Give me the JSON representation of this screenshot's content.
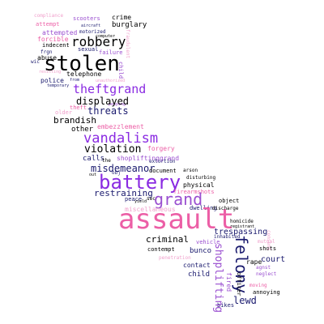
{
  "colors": {
    "black": "#000000",
    "navy": "#1a1a6e",
    "purple": "#8a2be2",
    "violet": "#9a4fd0",
    "pink": "#ec5fa6",
    "light_pink": "#f09fcb"
  },
  "words": {
    "assault": "assault",
    "stolen": "stolen",
    "battery": "battery",
    "vandalism": "vandalism",
    "felony": "felony",
    "grand": "grand",
    "robbery": "robbery",
    "theftgrand": "theftgrand",
    "shoplifting": "shoplifting",
    "displayed": "displayed",
    "threats": "threats",
    "violation": "violation",
    "misdemeanor": "misdemeanor",
    "criminal": "criminal",
    "brandish": "brandish",
    "trespassing": "trespassing",
    "restraining": "restraining",
    "lewd": "lewd",
    "telephone": "telephone",
    "court": "court",
    "burglary": "burglary",
    "attempted": "attempted",
    "forcible": "forcible",
    "indecent": "indecent",
    "sexual": "sexual",
    "abuse": "abuse",
    "police": "police",
    "other": "other",
    "theft": "theft",
    "older": "older",
    "calls": "calls",
    "crime": "crime",
    "compliance": "compliance",
    "scooters": "scooters",
    "attempt": "attempt",
    "motorized": "motorized",
    "computer": "computer",
    "aircraft": "aircraft",
    "failure": "failure",
    "frgn": "frgn",
    "wic": "wic",
    "child": "child",
    "embezzlement": "embezzlement",
    "forgery": "forgery",
    "shopliftinggrand": "shopliftinggrand",
    "extortion": "extortion",
    "document": "document",
    "arson": "arson",
    "physical": "physical",
    "firearmshots": "firearmshots",
    "miscellaneous": "miscellaneous",
    "dwelling": "dwelling",
    "object": "object",
    "yield": "yield",
    "peace": "peace",
    "sec": "sec",
    "disturbing": "disturbing",
    "homicide": "homicide",
    "registrant": "registrant",
    "vehicle": "vehicle",
    "inhabited": "inhabited",
    "bunco": "bunco",
    "contempt": "contempt",
    "penetration": "penetration",
    "contact": "contact",
    "child2": "child",
    "rape": "rape",
    "fired": "fired",
    "officer": "officer",
    "bikes": "bikes",
    "agnst": "agnst",
    "neglect": "neglect",
    "moving": "moving",
    "annoying": "annoying",
    "shots": "shots",
    "mutual": "mutual",
    "consent": "consent",
    "discharge": "discharge",
    "fraudulent": "fraudulent",
    "resisting": "resisting",
    "obj": "obj",
    "out": "out",
    "the": "the",
    "peeping": "peeping",
    "temporary": "temporary",
    "from": "from",
    "unauthorized": "unauthorized"
  }
}
